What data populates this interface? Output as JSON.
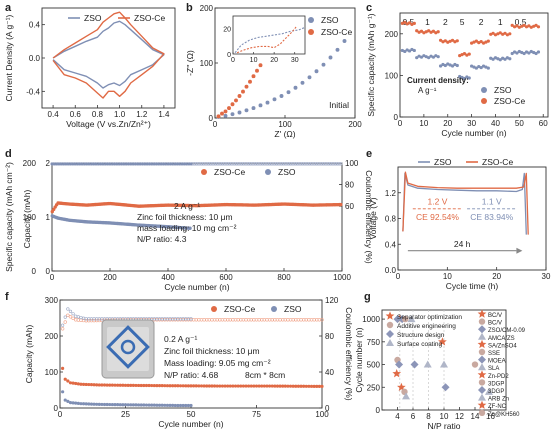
{
  "colors": {
    "zso": "#7f8fb4",
    "zso_ce": "#e06a45",
    "ce_grey": "#9aa6c4",
    "cell_blue": "#3a6cb3"
  },
  "panel_labels": [
    "a",
    "b",
    "c",
    "d",
    "e",
    "f",
    "g"
  ],
  "chart_data": [
    {
      "id": "a",
      "type": "line",
      "xlabel": "Voltage (V vs.Zn/Zn²⁺)",
      "ylabel": "Current Density (A g⁻¹)",
      "xlim": [
        0.3,
        1.5
      ],
      "ylim": [
        -0.6,
        0.6
      ],
      "xticks": [
        "0.4",
        "0.6",
        "0.8",
        "1.0",
        "1.2",
        "1.4"
      ],
      "xtick_values": [
        0.4,
        0.6,
        0.8,
        1.0,
        1.2,
        1.4
      ],
      "yticks": [
        "-0.4",
        "0.0",
        "0.4"
      ],
      "ytick_values": [
        -0.4,
        0.0,
        0.4
      ],
      "legend": [
        "ZSO",
        "ZSO-Ce"
      ],
      "series": [
        {
          "name": "ZSO",
          "x": [
            0.4,
            0.5,
            0.6,
            0.7,
            0.8,
            0.85,
            0.9,
            0.95,
            1.0,
            1.05,
            1.1,
            1.2,
            1.3,
            1.4,
            1.3,
            1.2,
            1.1,
            1.05,
            1.0,
            0.95,
            0.9,
            0.85,
            0.8,
            0.7,
            0.6,
            0.5,
            0.4
          ],
          "y": [
            0.0,
            0.08,
            0.14,
            0.2,
            0.25,
            0.32,
            0.36,
            0.42,
            0.44,
            0.4,
            0.34,
            0.22,
            0.1,
            0.04,
            -0.08,
            -0.14,
            -0.2,
            -0.28,
            -0.33,
            -0.3,
            -0.32,
            -0.36,
            -0.3,
            -0.22,
            -0.18,
            -0.14,
            -0.02
          ]
        },
        {
          "name": "ZSO-Ce",
          "x": [
            0.4,
            0.5,
            0.6,
            0.7,
            0.8,
            0.85,
            0.9,
            0.95,
            1.0,
            1.05,
            1.1,
            1.2,
            1.3,
            1.4,
            1.3,
            1.2,
            1.1,
            1.05,
            1.0,
            0.95,
            0.9,
            0.85,
            0.8,
            0.7,
            0.6,
            0.5,
            0.4
          ],
          "y": [
            0.0,
            0.1,
            0.18,
            0.26,
            0.34,
            0.43,
            0.48,
            0.53,
            0.55,
            0.48,
            0.4,
            0.26,
            0.12,
            0.05,
            -0.1,
            -0.2,
            -0.3,
            -0.4,
            -0.46,
            -0.4,
            -0.4,
            -0.48,
            -0.42,
            -0.3,
            -0.24,
            -0.2,
            -0.03
          ]
        }
      ]
    },
    {
      "id": "b",
      "type": "scatter",
      "xlabel": "Z' (Ω)",
      "ylabel": "-Z'' (Ω)",
      "xlim": [
        0,
        200
      ],
      "ylim": [
        0,
        200
      ],
      "xticks": [
        "0",
        "100",
        "200"
      ],
      "xtick_values": [
        0,
        100,
        200
      ],
      "yticks": [
        "0",
        "100",
        "200"
      ],
      "ytick_values": [
        0,
        100,
        200
      ],
      "legend": [
        "ZSO",
        "ZSO-Ce"
      ],
      "annotation": "Initial",
      "series": [
        {
          "name": "ZSO",
          "x": [
            5,
            15,
            25,
            35,
            45,
            55,
            65,
            75,
            85,
            95,
            105,
            115,
            125,
            135,
            145,
            155,
            165,
            175,
            185
          ],
          "y": [
            2,
            4,
            7,
            10,
            14,
            18,
            23,
            28,
            34,
            40,
            47,
            55,
            64,
            74,
            85,
            97,
            110,
            124,
            140
          ]
        },
        {
          "name": "ZSO-Ce",
          "x": [
            5,
            10,
            15,
            20,
            25,
            30,
            35,
            40,
            45,
            50,
            55,
            60,
            65
          ],
          "y": [
            3,
            8,
            12,
            18,
            25,
            32,
            40,
            48,
            57,
            66,
            76,
            86,
            96
          ]
        }
      ],
      "inset": {
        "xlim": [
          0,
          35
        ],
        "ylim": [
          0,
          30
        ],
        "xticks": [
          "0",
          "10",
          "20",
          "30"
        ],
        "xtick_values": [
          0,
          10,
          20,
          30
        ],
        "yticks": [
          "0",
          "20"
        ],
        "ytick_values": [
          0,
          20
        ],
        "series": [
          {
            "name": "ZSO",
            "x": [
              1,
              4,
              8,
              12,
              16,
              20,
              24,
              28,
              32,
              35
            ],
            "y": [
              1,
              7,
              11,
              13,
              14,
              15,
              16,
              18,
              19,
              21
            ]
          },
          {
            "name": "ZSO-Ce",
            "x": [
              2,
              5,
              9,
              13,
              17,
              20,
              23,
              26,
              29,
              31
            ],
            "y": [
              1,
              3,
              5,
              6,
              6,
              5,
              8,
              13,
              18,
              22
            ]
          }
        ]
      }
    },
    {
      "id": "c",
      "type": "scatter",
      "xlabel": "Cycle number (n)",
      "ylabel": "Specific capacity (mAh g⁻¹)",
      "xlim": [
        0,
        62
      ],
      "ylim": [
        0,
        250
      ],
      "xticks": [
        "0",
        "10",
        "20",
        "30",
        "40",
        "50",
        "60"
      ],
      "xtick_values": [
        0,
        10,
        20,
        30,
        40,
        50,
        60
      ],
      "yticks": [
        "0",
        "100",
        "200"
      ],
      "ytick_values": [
        0,
        100,
        200
      ],
      "rate_labels": [
        "0.5",
        "1",
        "2",
        "5",
        "2",
        "1",
        "0.5"
      ],
      "rate_label_x": [
        3.5,
        11.5,
        19,
        26,
        34,
        42,
        50.5
      ],
      "legend_title": "Current density:",
      "legend_unit": "A g⁻¹",
      "legend": [
        "ZSO",
        "ZSO-Ce"
      ],
      "segments": [
        {
          "x0": 1,
          "x1": 6,
          "zso": 160,
          "zso_ce": 225
        },
        {
          "x0": 7,
          "x1": 16,
          "zso": 145,
          "zso_ce": 205
        },
        {
          "x0": 17,
          "x1": 24,
          "zso": 125,
          "zso_ce": 182
        },
        {
          "x0": 25,
          "x1": 29,
          "zso": 95,
          "zso_ce": 150
        },
        {
          "x0": 30,
          "x1": 37,
          "zso": 120,
          "zso_ce": 180
        },
        {
          "x0": 38,
          "x1": 46,
          "zso": 140,
          "zso_ce": 200
        },
        {
          "x0": 47,
          "x1": 58,
          "zso": 155,
          "zso_ce": 218
        }
      ]
    },
    {
      "id": "d",
      "type": "scatter",
      "xlabel": "Cycle number (n)",
      "ylabel": "Specific capacity (mAh cm⁻²)",
      "ylabel_inner": "Capacity (mAh)",
      "y2label": "Coulombic efficiency (%)",
      "xlim": [
        0,
        1000
      ],
      "ylim": [
        0,
        2
      ],
      "y2lim": [
        0,
        100
      ],
      "xticks": [
        "0",
        "200",
        "400",
        "600",
        "800",
        "1000"
      ],
      "xtick_values": [
        0,
        200,
        400,
        600,
        800,
        1000
      ],
      "yticks": [
        "0",
        "1",
        "2"
      ],
      "ytick_values": [
        0,
        1,
        2
      ],
      "yticks_inner": [
        "0",
        "100",
        "200"
      ],
      "y2ticks": [
        "60",
        "80",
        "100"
      ],
      "y2tick_values": [
        60,
        80,
        100
      ],
      "legend": [
        "ZSO-Ce",
        "ZSO"
      ],
      "annotations": [
        "2 A g⁻¹",
        "Zinc foil thickness: 10 μm",
        "mass loading: 10 mg cm⁻²",
        "N/P ratio: 4.3"
      ],
      "series": [
        {
          "name": "ZSO-Ce",
          "x": [
            1,
            20,
            60,
            120,
            200,
            300,
            400,
            500,
            600,
            700,
            800,
            900,
            1000
          ],
          "y": [
            1.1,
            1.26,
            1.24,
            1.22,
            1.25,
            1.2,
            1.22,
            1.21,
            1.23,
            1.22,
            1.24,
            1.22,
            1.23
          ]
        },
        {
          "name": "ZSO",
          "x": [
            1,
            20,
            60,
            120,
            200,
            300,
            400,
            480
          ],
          "y": [
            1.03,
            0.99,
            0.95,
            0.92,
            0.9,
            0.86,
            0.83,
            0.8
          ]
        },
        {
          "name": "ZSO-Ce CE",
          "x": [
            0,
            1000
          ],
          "y": [
            99.5,
            99.5
          ]
        },
        {
          "name": "ZSO CE",
          "x": [
            0,
            480
          ],
          "y": [
            99.2,
            99.2
          ]
        }
      ]
    },
    {
      "id": "e",
      "type": "line",
      "xlabel": "Cycle time (h)",
      "ylabel": "Voltage (V)",
      "xlim": [
        0,
        30
      ],
      "ylim": [
        0.0,
        1.6
      ],
      "xticks": [
        "0",
        "10",
        "20",
        "30"
      ],
      "xtick_values": [
        0,
        10,
        20,
        30
      ],
      "yticks": [
        "0.0",
        "0.4",
        "0.8",
        "1.2"
      ],
      "ytick_values": [
        0.0,
        0.4,
        0.8,
        1.2
      ],
      "legend": [
        "ZSO",
        "ZSO-Ce"
      ],
      "annotations": [
        "1.2 V",
        "CE 92.54%",
        "1.1 V",
        "CE 83.94%",
        "24 h"
      ],
      "series": [
        {
          "name": "ZSO",
          "x": [
            1,
            1.4,
            2,
            4,
            8,
            12,
            16,
            20,
            24,
            25.2,
            25.6,
            26
          ],
          "y": [
            0.6,
            1.5,
            1.32,
            1.27,
            1.25,
            1.24,
            1.23,
            1.23,
            1.22,
            1.25,
            1.5,
            0.55
          ]
        },
        {
          "name": "ZSO-Ce",
          "x": [
            1,
            1.5,
            2,
            4,
            8,
            12,
            16,
            20,
            24,
            25.5,
            26,
            26.4
          ],
          "y": [
            0.6,
            1.52,
            1.35,
            1.3,
            1.28,
            1.27,
            1.27,
            1.27,
            1.27,
            1.29,
            1.5,
            0.55
          ]
        }
      ]
    },
    {
      "id": "f",
      "type": "scatter",
      "xlabel": "Cycle number (n)",
      "ylabel": "Capacity (mAh)",
      "y2label": "Coulombic efficiency (%)",
      "xlim": [
        0,
        100
      ],
      "ylim": [
        0,
        300
      ],
      "y2lim": [
        0,
        120
      ],
      "xticks": [
        "0",
        "25",
        "50",
        "75",
        "100"
      ],
      "xtick_values": [
        0,
        25,
        50,
        75,
        100
      ],
      "yticks": [
        "0",
        "100",
        "200",
        "300"
      ],
      "ytick_values": [
        0,
        100,
        200,
        300
      ],
      "y2ticks": [
        "0",
        "40",
        "80",
        "120"
      ],
      "y2tick_values": [
        0,
        40,
        80,
        120
      ],
      "legend": [
        "ZSO-Ce",
        "ZSO"
      ],
      "annotations": [
        "0.2 A g⁻¹",
        "Zinc foil thickness: 10 μm",
        "Mass loading: 9.05 mg cm⁻²",
        "N/P ratio: 4.68",
        "8cm * 8cm"
      ],
      "series": [
        {
          "name": "ZSO-Ce",
          "x": [
            1,
            2,
            4,
            8,
            15,
            25,
            40,
            60,
            80,
            100
          ],
          "y": [
            110,
            80,
            70,
            66,
            64,
            63,
            62,
            61,
            61,
            60
          ]
        },
        {
          "name": "ZSO",
          "x": [
            1,
            2,
            4,
            8,
            15,
            25,
            35,
            45,
            50
          ],
          "y": [
            45,
            22,
            15,
            12,
            10,
            9,
            8,
            7,
            7
          ]
        },
        {
          "name": "ZSO-Ce CE",
          "x": [
            1,
            3,
            6,
            10,
            30,
            60,
            100
          ],
          "y": [
            88,
            103,
            98,
            97,
            98,
            98,
            98
          ]
        },
        {
          "name": "ZSO CE",
          "x": [
            1,
            3,
            6,
            10,
            30,
            50
          ],
          "y": [
            92,
            110,
            102,
            99,
            99,
            99
          ]
        }
      ]
    },
    {
      "id": "g",
      "type": "scatter",
      "xlabel": "N/P ratio",
      "ylabel": "Cycle number (n)",
      "xlim": [
        2,
        18
      ],
      "ylim": [
        0,
        1100
      ],
      "xticks": [
        "4",
        "6",
        "8",
        "10",
        "12",
        "14",
        "16"
      ],
      "xtick_values": [
        4,
        6,
        8,
        10,
        12,
        14,
        16
      ],
      "yticks": [
        "0",
        "250",
        "500",
        "750",
        "1000"
      ],
      "ytick_values": [
        0,
        250,
        500,
        750,
        1000
      ],
      "category_legend": [
        "Separator optimization",
        "Additive engineering",
        "Structure design",
        "Surface coating"
      ],
      "reference_legend": [
        "BC/V",
        "BC/V",
        "ZSO/CM-0.09",
        "AMCA/ZS",
        "SA/ZnSO4",
        "SSE",
        "MOEA",
        "SLA",
        "Zn-PD2",
        "3DGP",
        "3DGP",
        "ARB Zn",
        "ZF-NC",
        "Zn@KH560"
      ],
      "points": [
        {
          "x": 4.3,
          "y": 1000,
          "cat": 0
        },
        {
          "x": 4.6,
          "y": 1000,
          "cat": 2
        },
        {
          "x": 4.0,
          "y": 1000,
          "cat": 2
        },
        {
          "x": 5.8,
          "y": 1000,
          "cat": 3
        },
        {
          "x": 5.0,
          "y": 1000,
          "cat": 1
        },
        {
          "x": 4.0,
          "y": 550,
          "cat": 1
        },
        {
          "x": 4.2,
          "y": 500,
          "cat": 2
        },
        {
          "x": 3.9,
          "y": 400,
          "cat": 0
        },
        {
          "x": 4.5,
          "y": 250,
          "cat": 0
        },
        {
          "x": 4.9,
          "y": 200,
          "cat": 1
        },
        {
          "x": 5.1,
          "y": 150,
          "cat": 3
        },
        {
          "x": 9.8,
          "y": 750,
          "cat": 0
        },
        {
          "x": 10.0,
          "y": 500,
          "cat": 3
        },
        {
          "x": 7.9,
          "y": 500,
          "cat": 3
        },
        {
          "x": 10.2,
          "y": 250,
          "cat": 2
        },
        {
          "x": 14.0,
          "y": 500,
          "cat": 1
        },
        {
          "x": 15.8,
          "y": 200,
          "cat": 3
        },
        {
          "x": 6.2,
          "y": 500,
          "cat": 2
        }
      ]
    }
  ]
}
